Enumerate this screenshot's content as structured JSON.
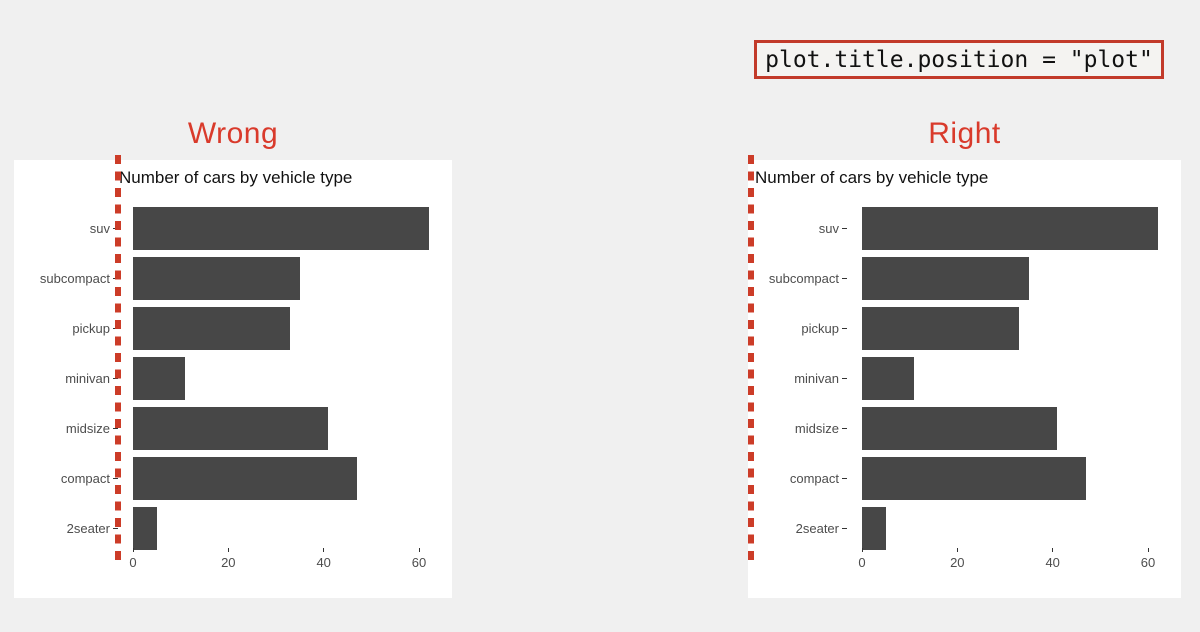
{
  "code_box": {
    "text": "plot.title.position = \"plot\""
  },
  "panels": [
    {
      "heading": "Wrong",
      "title_alignment": "panel"
    },
    {
      "heading": "Right",
      "title_alignment": "plot"
    }
  ],
  "chart_data": {
    "type": "bar",
    "orientation": "horizontal",
    "title": "Number of cars by vehicle type",
    "categories": [
      "suv",
      "subcompact",
      "pickup",
      "minivan",
      "midsize",
      "compact",
      "2seater"
    ],
    "values": [
      62,
      35,
      33,
      11,
      41,
      47,
      5
    ],
    "x_ticks": [
      0,
      20,
      40,
      60
    ],
    "xlim": [
      0,
      65
    ],
    "xlabel": "",
    "ylabel": "",
    "grid": false,
    "legend": false
  },
  "colors": {
    "background": "#f0f0f0",
    "panel": "#ffffff",
    "bar": "#474747",
    "guide_line_red": "#cc3c28",
    "heading_red": "#d93a2b",
    "code_border": "#c23a2a",
    "axis_text": "#4d4d4d"
  }
}
